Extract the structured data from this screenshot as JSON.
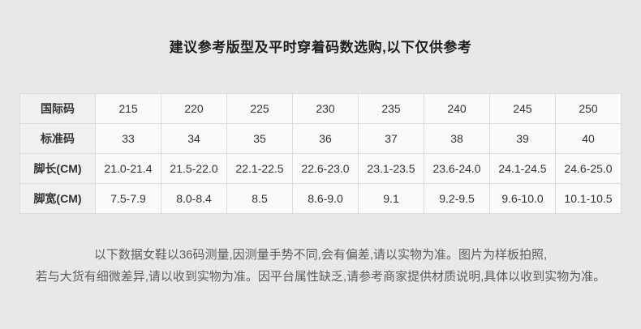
{
  "page": {
    "title": "建议参考版型及平时穿着码数选购,以下仅供参考",
    "background_color": "#e8e8e8",
    "label_cell_color": "#f0f0f0",
    "data_cell_color": "#fafafa",
    "border_color": "#dcdcdc",
    "footer_text_color": "#5c5c5c"
  },
  "size_table": {
    "rows": [
      {
        "label": "国际码",
        "values": [
          "215",
          "220",
          "225",
          "230",
          "235",
          "240",
          "245",
          "250"
        ]
      },
      {
        "label": "标准码",
        "values": [
          "33",
          "34",
          "35",
          "36",
          "37",
          "38",
          "39",
          "40"
        ]
      },
      {
        "label": "脚长(CM)",
        "values": [
          "21.0-21.4",
          "21.5-22.0",
          "22.1-22.5",
          "22.6-23.0",
          "23.1-23.5",
          "23.6-24.0",
          "24.1-24.5",
          "24.6-25.0"
        ]
      },
      {
        "label": "脚宽(CM)",
        "values": [
          "7.5-7.9",
          "8.0-8.4",
          "8.5",
          "8.6-9.0",
          "9.1",
          "9.2-9.5",
          "9.6-10.0",
          "10.1-10.5"
        ]
      }
    ]
  },
  "footer": {
    "line1": "以下数据女鞋以36码测量,因测量手势不同,会有偏差,请以实物为准。图片为样板拍照,",
    "line2": "若与大货有细微差异,请以收到实物为准。因平台属性缺乏,请参考商家提供材质说明,具体以收到实物为准。"
  }
}
